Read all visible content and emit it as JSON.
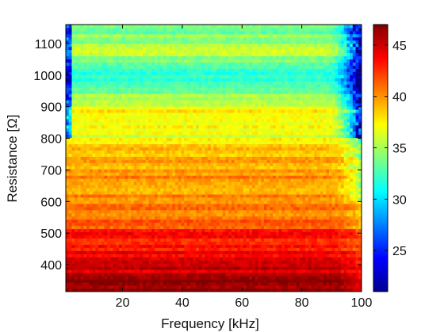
{
  "chart_data": {
    "type": "heatmap",
    "title": "",
    "xlabel": "Frequency [kHz]",
    "ylabel": "Resistance [Ω]",
    "xlim": [
      1,
      100
    ],
    "ylim": [
      315,
      1160
    ],
    "xticks": [
      20,
      40,
      60,
      80,
      100
    ],
    "yticks": [
      400,
      500,
      600,
      700,
      800,
      900,
      1000,
      1100
    ],
    "colorbar": {
      "colormap": "jet",
      "range": [
        21,
        47
      ],
      "ticks": [
        25,
        30,
        35,
        40,
        45
      ]
    },
    "grid_columns": 100,
    "grid_rows": 85,
    "value_profile_by_resistance": {
      "resistance": [
        315,
        350,
        400,
        450,
        500,
        530,
        560,
        600,
        650,
        700,
        750,
        790,
        810,
        850,
        900,
        930,
        960,
        1000,
        1030,
        1060,
        1080,
        1100,
        1160
      ],
      "typical_value": [
        46.5,
        46,
        44.5,
        43.5,
        43,
        41.5,
        40.5,
        40,
        39.8,
        39.5,
        38.8,
        38,
        36.5,
        37.5,
        37,
        35.5,
        33.5,
        31.5,
        32,
        35.5,
        36.5,
        34.5,
        33
      ]
    },
    "high_frequency_edge": {
      "from_kHz": 88,
      "note": "values drop toward 21-28 near 95-100 kHz for resistance above 800 Ω"
    }
  }
}
